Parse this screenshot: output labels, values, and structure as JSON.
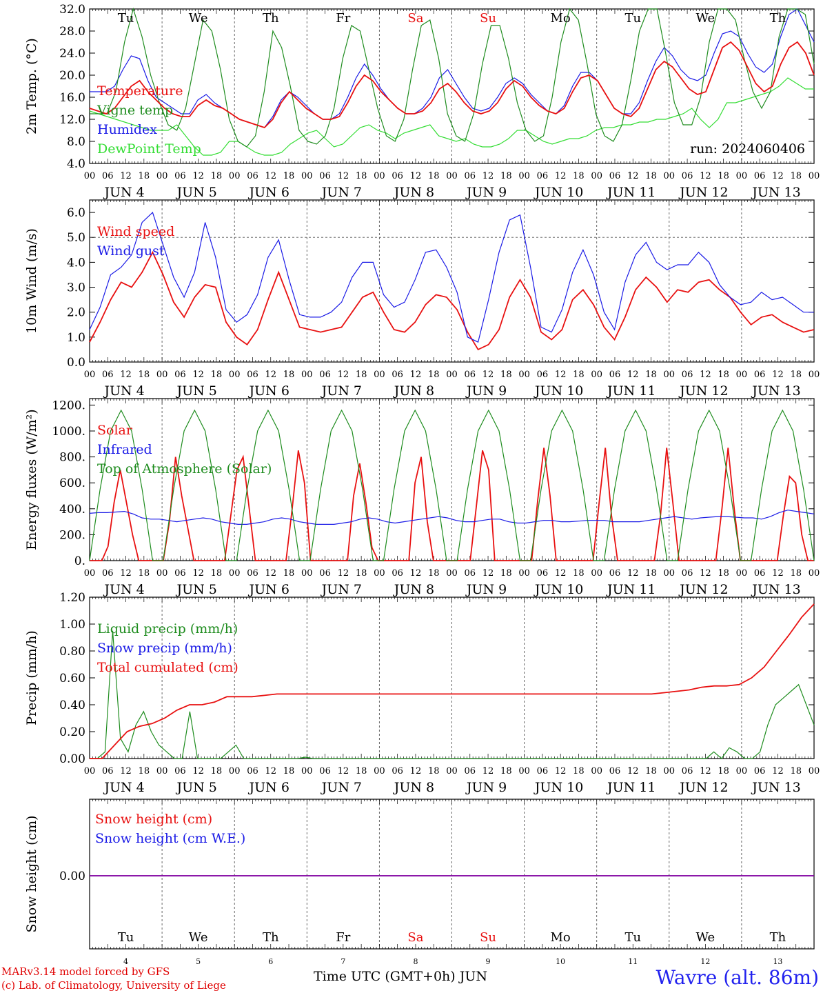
{
  "colors": {
    "red": "#e81010",
    "green": "#1e8c1e",
    "blue": "#1a1ae6",
    "lightgreen": "#33dd33",
    "purple": "#8000a0"
  },
  "x_axis": {
    "start_hour_labels": [
      "00",
      "06",
      "12",
      "18"
    ],
    "day_labels": [
      "JUN  4",
      "JUN  5",
      "JUN  6",
      "JUN  7",
      "JUN  8",
      "JUN  9",
      "JUN 10",
      "JUN 11",
      "JUN 12",
      "JUN 13"
    ],
    "weekdays": [
      "Tu",
      "We",
      "Th",
      "Fr",
      "Sa",
      "Su",
      "Mo",
      "Tu",
      "We",
      "Th"
    ],
    "weekday_colors": [
      "#000",
      "#000",
      "#000",
      "#000",
      "#e81010",
      "#e81010",
      "#000",
      "#000",
      "#000",
      "#000"
    ],
    "day_numbers": [
      "4",
      "5",
      "6",
      "7",
      "8",
      "9",
      "10",
      "11",
      "12",
      "13"
    ]
  },
  "chart_data": [
    {
      "type": "line",
      "ylabel": "2m Temp. (°C)",
      "ylim": [
        4,
        32
      ],
      "yticks": [
        "4.0",
        "8.0",
        "12.0",
        "16.0",
        "20.0",
        "24.0",
        "28.0",
        "32.0"
      ],
      "ytick_values": [
        4,
        8,
        12,
        16,
        20,
        24,
        28,
        32
      ],
      "annotation": "run: 2024060406",
      "series": [
        {
          "name": "Temperature",
          "color": "#e81010",
          "values": [
            14,
            13.5,
            13,
            14,
            16,
            18,
            19,
            17,
            15.5,
            14,
            13,
            12.5,
            12.5,
            14.5,
            15.5,
            14.5,
            14,
            13,
            12,
            11.5,
            11,
            10.5,
            12,
            15,
            17,
            15.5,
            14,
            13,
            12,
            12,
            12.5,
            15,
            18,
            20,
            19,
            17,
            15.5,
            14,
            13,
            13,
            13.5,
            15,
            17.5,
            18.5,
            17,
            15,
            13.5,
            13,
            13.5,
            15,
            17.5,
            19,
            18,
            16,
            14.5,
            13.5,
            13,
            14,
            17,
            19.5,
            20,
            19,
            16.5,
            14,
            13,
            12.5,
            14,
            17.5,
            21,
            22.5,
            21.5,
            19.5,
            17.5,
            16.5,
            17,
            21,
            25,
            26,
            24.5,
            21.5,
            18.5,
            17,
            18,
            22,
            25,
            26,
            24,
            20
          ]
        },
        {
          "name": "Vigne temp",
          "color": "#1e8c1e",
          "values": [
            13,
            13,
            13,
            17,
            26,
            32,
            27,
            20,
            15,
            11,
            10,
            14,
            22,
            30,
            28,
            21,
            12,
            8,
            7,
            9,
            17,
            28,
            25,
            18,
            10,
            8,
            7.5,
            9,
            14,
            23,
            29,
            28,
            21,
            14,
            9,
            8,
            12,
            21,
            29,
            30,
            23,
            13,
            9,
            8,
            13,
            22,
            29,
            29,
            23,
            15,
            10,
            8,
            9,
            16,
            26,
            32,
            30,
            22,
            13,
            9,
            8,
            11,
            19,
            28,
            33,
            32,
            24,
            15,
            11,
            11,
            16,
            26,
            33,
            34,
            30,
            23,
            17,
            14,
            17,
            27,
            33,
            34,
            31,
            22
          ]
        },
        {
          "name": "Humidex",
          "color": "#1a1ae6",
          "values": [
            17,
            17,
            17,
            18,
            21,
            23.5,
            23,
            19,
            16,
            15,
            14,
            13,
            13,
            15.5,
            16.5,
            15,
            14,
            13,
            12,
            11.5,
            11,
            10.5,
            12.5,
            15.5,
            17,
            16,
            14.5,
            13,
            12,
            12,
            13,
            16,
            19.5,
            22,
            20,
            17.5,
            15.5,
            14,
            13,
            13,
            14,
            16,
            19.5,
            21,
            18.5,
            16,
            14,
            13.5,
            14,
            16,
            18.5,
            19.5,
            18.5,
            16.5,
            15,
            13.5,
            13,
            14.5,
            18,
            20.5,
            20.5,
            19,
            16.5,
            14,
            13,
            13,
            15,
            19,
            22.5,
            25,
            23.5,
            21,
            19.5,
            19,
            20,
            24,
            27.5,
            28,
            27,
            24,
            21.5,
            20.5,
            22,
            27,
            31,
            32,
            29,
            26
          ]
        },
        {
          "name": "DewPoint Temp",
          "color": "#33dd33",
          "values": [
            13.5,
            13,
            12.5,
            12,
            11.5,
            11,
            10.5,
            10,
            10,
            10,
            11,
            9,
            7,
            5.5,
            5.5,
            6,
            8,
            8,
            7,
            6,
            5.5,
            5.5,
            6,
            7.5,
            8.5,
            9.5,
            10,
            8.5,
            7,
            7.5,
            9,
            10.5,
            11,
            10,
            9.5,
            8.5,
            9.5,
            10,
            10.5,
            11,
            9,
            8.5,
            8,
            8.5,
            7.5,
            7,
            7,
            7.5,
            8.5,
            10,
            10,
            9,
            8,
            7.5,
            8,
            8.5,
            8.5,
            9,
            10,
            10.5,
            10.5,
            11,
            11,
            11.5,
            11.5,
            12,
            12,
            12.5,
            13,
            14,
            12,
            10.5,
            12,
            15,
            15,
            15.5,
            16,
            16.5,
            17,
            18,
            19.5,
            18.5,
            17.5,
            17.5
          ]
        }
      ]
    },
    {
      "type": "line",
      "ylabel": "10m Wind (m/s)",
      "ylim": [
        0,
        6.5
      ],
      "yticks": [
        "0.0",
        "1.0",
        "2.0",
        "3.0",
        "4.0",
        "5.0",
        "6.0"
      ],
      "ytick_values": [
        0,
        1,
        2,
        3,
        4,
        5,
        6
      ],
      "series": [
        {
          "name": "Wind speed",
          "color": "#e81010",
          "values": [
            0.8,
            1.6,
            2.5,
            3.2,
            3.0,
            3.6,
            4.4,
            3.5,
            2.4,
            1.8,
            2.6,
            3.1,
            3.0,
            1.6,
            1.0,
            0.7,
            1.3,
            2.5,
            3.6,
            2.5,
            1.4,
            1.3,
            1.2,
            1.3,
            1.4,
            2.0,
            2.6,
            2.8,
            2.0,
            1.3,
            1.2,
            1.6,
            2.3,
            2.7,
            2.6,
            2.1,
            1.2,
            0.5,
            0.7,
            1.3,
            2.6,
            3.3,
            2.6,
            1.2,
            0.9,
            1.3,
            2.5,
            2.9,
            2.3,
            1.4,
            0.9,
            1.8,
            2.9,
            3.4,
            3.0,
            2.4,
            2.9,
            2.8,
            3.2,
            3.3,
            2.9,
            2.6,
            2.0,
            1.5,
            1.8,
            1.9,
            1.6,
            1.4,
            1.2,
            1.3
          ]
        },
        {
          "name": "Wind gust",
          "color": "#1a1ae6",
          "values": [
            1.3,
            2.2,
            3.5,
            3.8,
            4.3,
            5.6,
            6.0,
            4.7,
            3.4,
            2.6,
            3.6,
            5.6,
            4.2,
            2.1,
            1.6,
            1.9,
            2.7,
            4.2,
            4.9,
            3.3,
            1.9,
            1.8,
            1.8,
            2.0,
            2.4,
            3.4,
            4.0,
            4.0,
            2.7,
            2.2,
            2.4,
            3.3,
            4.4,
            4.5,
            3.8,
            2.8,
            1.0,
            0.8,
            2.5,
            4.4,
            5.7,
            5.9,
            3.8,
            1.4,
            1.2,
            2.1,
            3.6,
            4.5,
            3.5,
            2.0,
            1.3,
            3.2,
            4.3,
            4.8,
            4.0,
            3.7,
            3.9,
            3.9,
            4.4,
            4.0,
            3.1,
            2.6,
            2.3,
            2.4,
            2.8,
            2.5,
            2.6,
            2.3,
            2.0,
            2.0
          ]
        }
      ]
    },
    {
      "type": "line",
      "ylabel": "Energy fluxes (W/m²)",
      "ylim": [
        0,
        1250
      ],
      "yticks": [
        "0.",
        "200.",
        "400.",
        "600.",
        "800.",
        "1000.",
        "1200."
      ],
      "ytick_values": [
        0,
        200,
        400,
        600,
        800,
        1000,
        1200
      ],
      "series": [
        {
          "name": "Solar",
          "color": "#e81010",
          "values": [
            0,
            0,
            0,
            110,
            450,
            700,
            450,
            200,
            0,
            0,
            0,
            0,
            0,
            300,
            800,
            500,
            250,
            0,
            0,
            0,
            0,
            0,
            0,
            350,
            700,
            800,
            400,
            0,
            0,
            0,
            0,
            0,
            0,
            400,
            850,
            600,
            0,
            0,
            0,
            0,
            0,
            0,
            0,
            500,
            750,
            450,
            100,
            0,
            0,
            0,
            0,
            0,
            0,
            600,
            800,
            300,
            0,
            0,
            0,
            0,
            0,
            0,
            0,
            420,
            850,
            700,
            0,
            0,
            0,
            0,
            0,
            0,
            0,
            470,
            870,
            500,
            0,
            0,
            0,
            0,
            0,
            0,
            0,
            450,
            870,
            350,
            0,
            0,
            0,
            0,
            0,
            0,
            0,
            350,
            870,
            450,
            0,
            0,
            0,
            0,
            0,
            0,
            0,
            400,
            870,
            400,
            0,
            0,
            0,
            0,
            0,
            0,
            0,
            350,
            650,
            600,
            200,
            0,
            0
          ]
        },
        {
          "name": "Infrared",
          "color": "#1a1ae6",
          "values": [
            365,
            370,
            370,
            375,
            380,
            360,
            330,
            320,
            320,
            310,
            300,
            310,
            320,
            330,
            320,
            300,
            290,
            280,
            280,
            290,
            300,
            320,
            330,
            320,
            300,
            290,
            280,
            280,
            280,
            290,
            300,
            320,
            330,
            320,
            300,
            290,
            300,
            310,
            320,
            330,
            340,
            330,
            310,
            300,
            300,
            310,
            320,
            320,
            300,
            290,
            290,
            300,
            310,
            310,
            300,
            300,
            305,
            310,
            310,
            310,
            300,
            300,
            300,
            300,
            310,
            320,
            330,
            340,
            330,
            320,
            330,
            335,
            340,
            340,
            335,
            330,
            330,
            320,
            340,
            370,
            390,
            380,
            370,
            360
          ]
        },
        {
          "name": "Top of Atmosphere (Solar)",
          "color": "#1e8c1e",
          "values": [
            0,
            550,
            1000,
            1160,
            1000,
            550,
            0,
            0,
            550,
            1000,
            1160,
            1000,
            550,
            0,
            0,
            550,
            1000,
            1160,
            1000,
            550,
            0,
            0,
            550,
            1000,
            1160,
            1000,
            550,
            0,
            0,
            550,
            1000,
            1160,
            1000,
            550,
            0,
            0,
            550,
            1000,
            1160,
            1000,
            550,
            0,
            0,
            550,
            1000,
            1160,
            1000,
            550,
            0,
            0,
            550,
            1000,
            1160,
            1000,
            550,
            0,
            0,
            550,
            1000,
            1160,
            1000,
            550,
            0,
            0,
            550,
            1000,
            1160,
            1000,
            550,
            0
          ]
        }
      ]
    },
    {
      "type": "line",
      "ylabel": "Precip (mm/h)",
      "ylim": [
        0,
        1.2
      ],
      "yticks": [
        "0.00",
        "0.20",
        "0.40",
        "0.60",
        "0.80",
        "1.00",
        "1.20"
      ],
      "ytick_values": [
        0,
        0.2,
        0.4,
        0.6,
        0.8,
        1.0,
        1.2
      ],
      "series": [
        {
          "name": "Liquid precip (mm/h)",
          "color": "#1e8c1e",
          "values": [
            0,
            0,
            0.05,
            0.95,
            0.15,
            0.05,
            0.25,
            0.35,
            0.2,
            0.1,
            0.05,
            0,
            0,
            0.35,
            0,
            0,
            0,
            0,
            0.05,
            0.1,
            0,
            0,
            0,
            0,
            0,
            0,
            0,
            0,
            0.01,
            0,
            0,
            0,
            0,
            0,
            0,
            0,
            0,
            0,
            0,
            0,
            0,
            0,
            0,
            0,
            0,
            0,
            0,
            0,
            0,
            0,
            0,
            0,
            0,
            0,
            0,
            0,
            0,
            0,
            0,
            0,
            0,
            0,
            0,
            0,
            0,
            0,
            0,
            0,
            0,
            0,
            0,
            0,
            0,
            0,
            0,
            0,
            0,
            0,
            0,
            0,
            0,
            0.05,
            0,
            0.08,
            0.05,
            0,
            0,
            0.05,
            0.25,
            0.4,
            0.45,
            0.5,
            0.55,
            0.4,
            0.25
          ]
        },
        {
          "name": "Snow precip (mm/h)",
          "color": "#1a1ae6",
          "values": []
        },
        {
          "name": "Total cumulated (cm)",
          "color": "#e81010",
          "values": [
            0,
            0,
            0.1,
            0.2,
            0.24,
            0.26,
            0.3,
            0.36,
            0.4,
            0.4,
            0.42,
            0.46,
            0.46,
            0.46,
            0.47,
            0.48,
            0.48,
            0.48,
            0.48,
            0.48,
            0.48,
            0.48,
            0.48,
            0.48,
            0.48,
            0.48,
            0.48,
            0.48,
            0.48,
            0.48,
            0.48,
            0.48,
            0.48,
            0.48,
            0.48,
            0.48,
            0.48,
            0.48,
            0.48,
            0.48,
            0.48,
            0.48,
            0.48,
            0.48,
            0.48,
            0.48,
            0.49,
            0.5,
            0.51,
            0.53,
            0.54,
            0.54,
            0.55,
            0.6,
            0.68,
            0.8,
            0.92,
            1.05,
            1.15
          ]
        }
      ]
    },
    {
      "type": "line",
      "ylabel": "Snow height (cm)",
      "yticks": [
        "0.00"
      ],
      "ytick_values": [
        0
      ],
      "series": [
        {
          "name": "Snow height (cm)",
          "color": "#e81010",
          "values": [
            0,
            0
          ]
        },
        {
          "name": "Snow height (cm W.E.)",
          "color": "#1a1ae6",
          "values": [
            0,
            0
          ]
        }
      ]
    }
  ],
  "footer": {
    "credit1": "MARv3.14 model forced by GFS",
    "credit2": "(c) Lab. of Climatology, University of Liege",
    "time_label": "Time UTC (GMT+0h) JUN",
    "station": "Wavre (alt. 86m)"
  }
}
